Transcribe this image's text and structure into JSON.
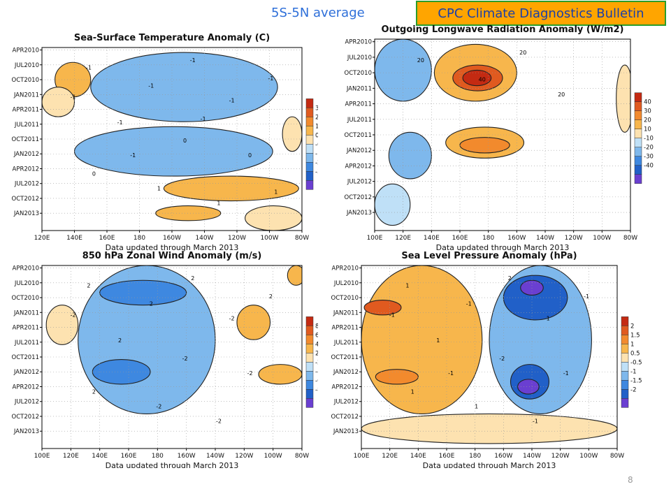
{
  "header": {
    "subtitle": "5S-5N average",
    "banner": "CPC Climate Diagnostics Bulletin"
  },
  "colors": {
    "warm": [
      "#fde2b0",
      "#f7b64c",
      "#f28a2d",
      "#e05a1f",
      "#c42a12"
    ],
    "cold": [
      "#bfe0f7",
      "#7eb8ec",
      "#3e88e0",
      "#2160c8",
      "#6a3fd1"
    ],
    "banner_bg": "#ffa500",
    "banner_border": "#2a9d2a"
  },
  "footer": {
    "page_number": "8"
  },
  "chart_data": [
    {
      "type": "heatmap",
      "title": "Sea-Surface Temperature Anomaly (C)",
      "xlabel": "Data updated through March 2013",
      "x_ticks": [
        "120E",
        "140E",
        "160E",
        "180",
        "160W",
        "140W",
        "120W",
        "100W",
        "80W"
      ],
      "y_ticks": [
        "APR2010",
        "JUL2010",
        "OCT2010",
        "JAN2011",
        "APR2011",
        "JUL2011",
        "OCT2011",
        "JAN2012",
        "APR2012",
        "JUL2012",
        "OCT2012",
        "JAN2013"
      ],
      "colorbar": [
        "3",
        "2",
        "1",
        "0.5",
        "-0.5",
        "-1",
        "-2",
        "-3"
      ],
      "contour_labels": [
        "-1",
        "-1",
        "-1",
        "-1",
        "-1",
        "0",
        "0",
        "0",
        "1",
        "1",
        "-1",
        "-1",
        "-1",
        "-1",
        "1"
      ],
      "features": [
        {
          "sign": "cold",
          "level": 3,
          "lon": [
            158,
            248
          ],
          "t": [
            3,
            12
          ]
        },
        {
          "sign": "cold",
          "level": 1,
          "lon": [
            150,
            265
          ],
          "t": [
            1,
            15
          ]
        },
        {
          "sign": "cold",
          "level": 2,
          "lon": [
            150,
            238
          ],
          "t": [
            19,
            24
          ]
        },
        {
          "sign": "cold",
          "level": 1,
          "lon": [
            140,
            262
          ],
          "t": [
            16,
            26
          ]
        },
        {
          "sign": "warm",
          "level": 1,
          "lon": [
            128,
            150
          ],
          "t": [
            3,
            10
          ]
        },
        {
          "sign": "warm",
          "level": 1,
          "lon": [
            195,
            278
          ],
          "t": [
            26,
            31
          ]
        },
        {
          "sign": "warm",
          "level": 1,
          "lon": [
            190,
            230
          ],
          "t": [
            32,
            35
          ]
        },
        {
          "sign": "warm",
          "level": 0,
          "lon": [
            120,
            140
          ],
          "t": [
            8,
            14
          ]
        },
        {
          "sign": "warm",
          "level": 0,
          "lon": [
            268,
            280
          ],
          "t": [
            14,
            21
          ]
        },
        {
          "sign": "warm",
          "level": 0,
          "lon": [
            245,
            280
          ],
          "t": [
            32,
            37
          ]
        }
      ]
    },
    {
      "type": "heatmap",
      "title": "Outgoing Longwave Radiation Anomaly (W/m2)",
      "xlabel": "Data updated through March 2013",
      "x_ticks": [
        "100E",
        "120E",
        "140E",
        "160E",
        "180",
        "160W",
        "140W",
        "120W",
        "100W",
        "80W"
      ],
      "y_ticks": [
        "APR2010",
        "JUL2010",
        "OCT2010",
        "JAN2011",
        "APR2011",
        "JUL2011",
        "OCT2011",
        "JAN2012",
        "APR2012",
        "JUL2012",
        "OCT2012",
        "JAN2013"
      ],
      "colorbar": [
        "40",
        "30",
        "20",
        "10",
        "-10",
        "-20",
        "-30",
        "-40"
      ],
      "contour_labels": [
        "20",
        "40",
        "20",
        "20"
      ],
      "features": [
        {
          "sign": "warm",
          "level": 1,
          "lon": [
            142,
            200
          ],
          "t": [
            1,
            12
          ]
        },
        {
          "sign": "warm",
          "level": 3,
          "lon": [
            155,
            190
          ],
          "t": [
            5,
            10
          ]
        },
        {
          "sign": "warm",
          "level": 4,
          "lon": [
            162,
            182
          ],
          "t": [
            6,
            9
          ]
        },
        {
          "sign": "warm",
          "level": 1,
          "lon": [
            150,
            205
          ],
          "t": [
            17,
            23
          ]
        },
        {
          "sign": "warm",
          "level": 2,
          "lon": [
            160,
            195
          ],
          "t": [
            19,
            22
          ]
        },
        {
          "sign": "cold",
          "level": 1,
          "lon": [
            100,
            140
          ],
          "t": [
            0,
            12
          ]
        },
        {
          "sign": "cold",
          "level": 1,
          "lon": [
            110,
            140
          ],
          "t": [
            18,
            27
          ]
        },
        {
          "sign": "cold",
          "level": 0,
          "lon": [
            100,
            125
          ],
          "t": [
            28,
            36
          ]
        },
        {
          "sign": "warm",
          "level": 0,
          "lon": [
            270,
            282
          ],
          "t": [
            5,
            18
          ]
        }
      ]
    },
    {
      "type": "heatmap",
      "title": "850 hPa Zonal Wind Anomaly (m/s)",
      "xlabel": "Data updated through March 2013",
      "x_ticks": [
        "100E",
        "120E",
        "140E",
        "160E",
        "180",
        "160W",
        "140W",
        "120W",
        "100W",
        "80W"
      ],
      "y_ticks": [
        "APR2010",
        "JUL2010",
        "OCT2010",
        "JAN2011",
        "APR2011",
        "JUL2011",
        "OCT2011",
        "JAN2012",
        "APR2012",
        "JUL2012",
        "OCT2012",
        "JAN2013"
      ],
      "colorbar": [
        "8",
        "6",
        "4",
        "2",
        "-2",
        "-4",
        "-6",
        "-8"
      ],
      "contour_labels": [
        "2",
        "2",
        "2",
        "-2",
        "2",
        "-2",
        "-2",
        "2",
        "-2",
        "-2",
        "-2",
        "2"
      ],
      "features": [
        {
          "sign": "cold",
          "level": 1,
          "lon": [
            125,
            220
          ],
          "t": [
            0,
            30
          ]
        },
        {
          "sign": "cold",
          "level": 2,
          "lon": [
            140,
            200
          ],
          "t": [
            3,
            8
          ]
        },
        {
          "sign": "cold",
          "level": 2,
          "lon": [
            135,
            175
          ],
          "t": [
            19,
            24
          ]
        },
        {
          "sign": "warm",
          "level": 1,
          "lon": [
            235,
            258
          ],
          "t": [
            8,
            15
          ]
        },
        {
          "sign": "warm",
          "level": 1,
          "lon": [
            250,
            280
          ],
          "t": [
            20,
            24
          ]
        },
        {
          "sign": "warm",
          "level": 0,
          "lon": [
            103,
            125
          ],
          "t": [
            8,
            16
          ]
        },
        {
          "sign": "warm",
          "level": 1,
          "lon": [
            270,
            282
          ],
          "t": [
            0,
            4
          ]
        }
      ]
    },
    {
      "type": "heatmap",
      "title": "Sea Level Pressure Anomaly (hPa)",
      "xlabel": "Data updated through March 2013",
      "x_ticks": [
        "100E",
        "120E",
        "140E",
        "160E",
        "180",
        "160W",
        "140W",
        "120W",
        "100W",
        "80W"
      ],
      "y_ticks": [
        "APR2010",
        "JUL2010",
        "OCT2010",
        "JAN2011",
        "APR2011",
        "JUL2011",
        "OCT2011",
        "JAN2012",
        "APR2012",
        "JUL2012",
        "OCT2012",
        "JAN2013"
      ],
      "colorbar": [
        "2",
        "1.5",
        "1",
        "0.5",
        "-0.5",
        "-1",
        "-1.5",
        "-2"
      ],
      "contour_labels": [
        "1",
        "-1",
        "2",
        "1",
        "1",
        "-2",
        "-1",
        "1",
        "1",
        "-1",
        "-1",
        "-1",
        "-1"
      ],
      "features": [
        {
          "sign": "warm",
          "level": 1,
          "lon": [
            100,
            185
          ],
          "t": [
            0,
            30
          ]
        },
        {
          "sign": "warm",
          "level": 3,
          "lon": [
            102,
            128
          ],
          "t": [
            7,
            10
          ]
        },
        {
          "sign": "warm",
          "level": 2,
          "lon": [
            110,
            140
          ],
          "t": [
            21,
            24
          ]
        },
        {
          "sign": "cold",
          "level": 1,
          "lon": [
            190,
            262
          ],
          "t": [
            0,
            30
          ]
        },
        {
          "sign": "cold",
          "level": 3,
          "lon": [
            200,
            245
          ],
          "t": [
            2,
            11
          ]
        },
        {
          "sign": "cold",
          "level": 4,
          "lon": [
            212,
            228
          ],
          "t": [
            3,
            6
          ]
        },
        {
          "sign": "cold",
          "level": 3,
          "lon": [
            205,
            232
          ],
          "t": [
            20,
            27
          ]
        },
        {
          "sign": "cold",
          "level": 4,
          "lon": [
            210,
            225
          ],
          "t": [
            23,
            26
          ]
        },
        {
          "sign": "warm",
          "level": 0,
          "lon": [
            100,
            280
          ],
          "t": [
            30,
            36
          ]
        }
      ]
    }
  ]
}
